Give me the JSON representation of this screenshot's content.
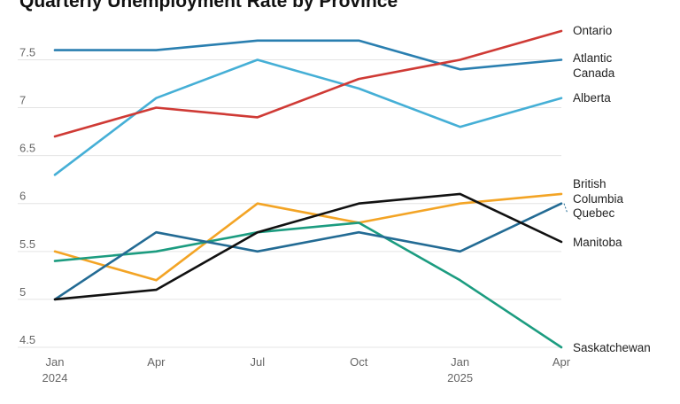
{
  "chart_data": {
    "type": "line",
    "title": "Quarterly Unemployment Rate by Province",
    "xlabel": "",
    "ylabel": "",
    "x": [
      "Jan 2024",
      "Apr 2024",
      "Jul 2024",
      "Oct 2024",
      "Jan 2025",
      "Apr 2025"
    ],
    "x_tick_labels": [
      {
        "line1": "Jan",
        "line2": "2024"
      },
      {
        "line1": "Apr",
        "line2": ""
      },
      {
        "line1": "Jul",
        "line2": ""
      },
      {
        "line1": "Oct",
        "line2": ""
      },
      {
        "line1": "Jan",
        "line2": "2025"
      },
      {
        "line1": "Apr",
        "line2": ""
      }
    ],
    "ylim": [
      4.5,
      7.8
    ],
    "y_ticks": [
      4.5,
      5,
      5.5,
      6,
      6.5,
      7,
      7.5
    ],
    "y_tick_labels": [
      "4.5",
      "5",
      "5.5",
      "6",
      "6.5",
      "7",
      "7.5"
    ],
    "grid": true,
    "legend": "direct labels at right end of lines",
    "series": [
      {
        "name": "Atlantic Canada",
        "label_lines": [
          "Atlantic",
          "Canada"
        ],
        "color": "#2a7fb0",
        "values": [
          7.6,
          7.6,
          7.7,
          7.7,
          7.4,
          7.5
        ]
      },
      {
        "name": "Alberta",
        "label_lines": [
          "Alberta"
        ],
        "color": "#45afd6",
        "values": [
          6.3,
          7.1,
          7.5,
          7.2,
          6.8,
          7.1
        ]
      },
      {
        "name": "Ontario",
        "label_lines": [
          "Ontario"
        ],
        "color": "#cf3a35",
        "values": [
          6.7,
          7.0,
          6.9,
          7.3,
          7.5,
          7.8
        ]
      },
      {
        "name": "British Columbia",
        "label_lines": [
          "British",
          "Columbia"
        ],
        "color": "#f3a425",
        "values": [
          5.5,
          5.2,
          6.0,
          5.8,
          6.0,
          6.1
        ]
      },
      {
        "name": "Saskatchewan",
        "label_lines": [
          "Saskatchewan"
        ],
        "color": "#1c9c80",
        "values": [
          5.4,
          5.5,
          5.7,
          5.8,
          5.2,
          4.5
        ]
      },
      {
        "name": "Quebec",
        "label_lines": [
          "Quebec"
        ],
        "color": "#236b94",
        "values": [
          5.0,
          5.7,
          5.5,
          5.7,
          5.5,
          6.0
        ]
      },
      {
        "name": "Manitoba",
        "label_lines": [
          "Manitoba"
        ],
        "color": "#111111",
        "values": [
          5.0,
          5.1,
          5.7,
          6.0,
          6.1,
          5.6
        ]
      }
    ]
  }
}
